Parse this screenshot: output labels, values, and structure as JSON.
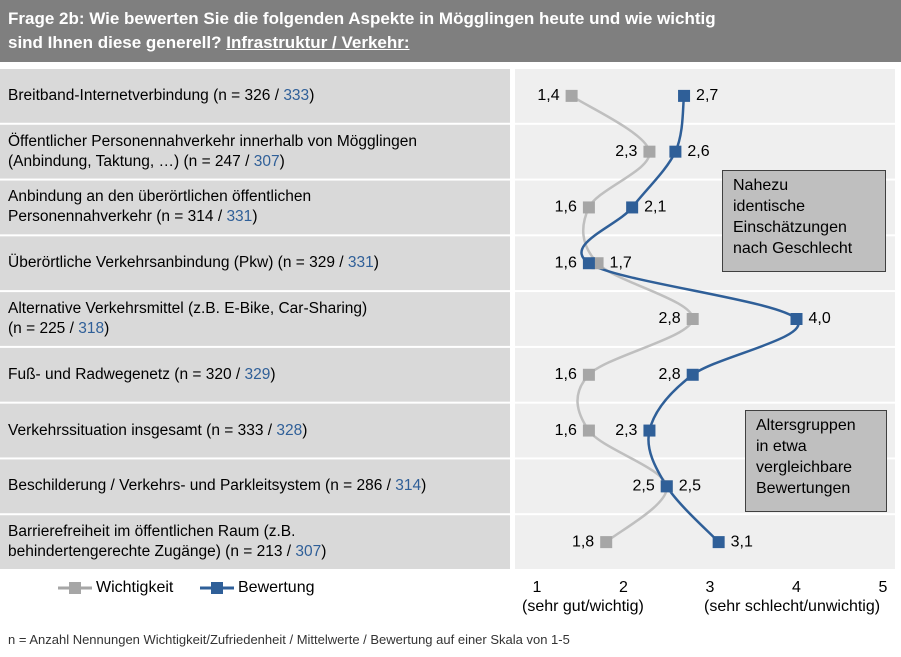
{
  "chart_data": {
    "type": "dot-line",
    "title": "Frage 2b: Wie bewerten Sie die folgenden  Aspekte in Mögglingen  heute und wie wichtig\nsind Ihnen diese generell? ",
    "subtitle": "Infrastruktur  / Verkehr:",
    "categories": [
      "Breitband-Internetverbindung  (n = 326 / 333)",
      "Öffentlicher Personennahverkehr innerhalb von Mögglingen\n(Anbindung, Taktung, …) (n = 247 / 307)",
      "Anbindung  an den überörtlichen öffentlichen\nPersonennahverkehr  (n = 314 / 331)",
      "Überörtliche Verkehrsanbindung  (Pkw) (n = 329 / 331)",
      "Alternative Verkehrsmittel (z.B. E-Bike, Car-Sharing)\n(n = 225 / 318)",
      "Fuß- und Radwegenetz (n = 320 / 329)",
      "Verkehrssituation insgesamt  (n = 333 / 328)",
      "Beschilderung  / Verkehrs- und Parkleitsystem (n = 286 / 314)",
      "Barrierefreiheit im öffentlichen Raum (z.B.\nbehindertengerechte Zugänge) (n = 213 / 307)"
    ],
    "series": [
      {
        "name": "Wichtigkeit",
        "color": "#a6a6a6",
        "values": [
          1.4,
          2.3,
          1.6,
          1.7,
          2.8,
          1.6,
          1.6,
          2.5,
          1.8
        ],
        "value_labels": [
          "1,4",
          "2,3",
          "1,6",
          "1,7",
          "2,8",
          "1,6",
          "1,6",
          "2,5",
          "1,8"
        ]
      },
      {
        "name": "Bewertung",
        "color": "#2f5f98",
        "values": [
          2.7,
          2.6,
          2.1,
          1.6,
          4.0,
          2.8,
          2.3,
          2.5,
          3.1
        ],
        "value_labels": [
          "2,7",
          "2,6",
          "2,1",
          "1,6",
          "4,0",
          "2,8",
          "2,3",
          "2,5",
          "3,1"
        ]
      }
    ],
    "xlim": [
      1,
      5
    ],
    "xticks": [
      1,
      2,
      3,
      4,
      5
    ],
    "xlabel_left": "(sehr gut/wichtig)",
    "xlabel_right": "(sehr schlecht/unwichtig)",
    "annotations": [
      "Nahezu\nidentische\nEinschätzungen\nnach Geschlecht",
      "Altersgruppen\nin etwa\nvergleichbare\nBewertungen"
    ],
    "footnote": "n = Anzahl Nennungen  Wichtigkeit/Zufriedenheit  /  Mittelwerte  /  Bewertung auf einer Skala von 1-5"
  }
}
